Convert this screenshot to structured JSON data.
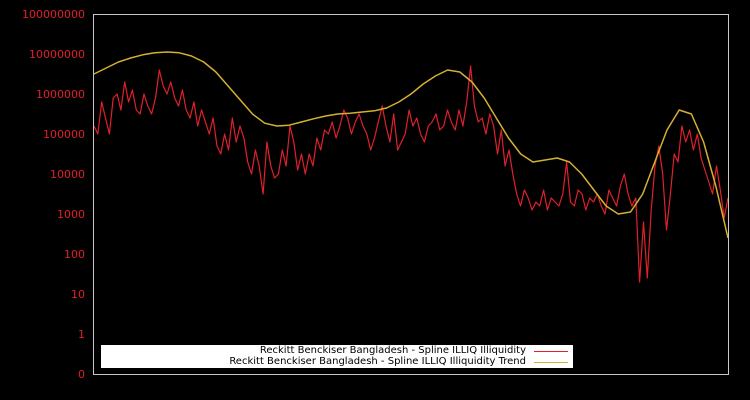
{
  "chart_data": {
    "type": "line",
    "title": "",
    "xlabel": "",
    "ylabel": "",
    "yscale": "log",
    "y_tick_labels": [
      "100000000",
      "10000000",
      "1000000",
      "100000",
      "10000",
      "1000",
      "100",
      "10",
      "1",
      "0"
    ],
    "ylim": [
      0,
      100000000
    ],
    "x_tick_labels": [],
    "grid": false,
    "legend_position": "bottom-left inside plot",
    "series": [
      {
        "name": "Reckitt Benckiser Bangladesh - Spline ILLIQ Illiquidity",
        "color": "#e0202c",
        "note": "log10 values sampled evenly across the x-axis (approximate)",
        "log10_values": [
          5.2,
          5.0,
          5.8,
          5.4,
          5.0,
          5.9,
          6.0,
          5.6,
          6.3,
          5.8,
          6.1,
          5.6,
          5.5,
          6.0,
          5.7,
          5.5,
          5.9,
          6.6,
          6.2,
          6.0,
          6.3,
          5.9,
          5.7,
          6.1,
          5.6,
          5.4,
          5.8,
          5.2,
          5.6,
          5.3,
          5.0,
          5.4,
          4.7,
          4.5,
          5.0,
          4.6,
          5.4,
          4.8,
          5.2,
          4.9,
          4.3,
          4.0,
          4.6,
          4.2,
          3.5,
          4.8,
          4.2,
          3.9,
          4.0,
          4.6,
          4.2,
          5.2,
          4.8,
          4.1,
          4.5,
          4.0,
          4.5,
          4.2,
          4.9,
          4.6,
          5.1,
          5.0,
          5.3,
          4.9,
          5.2,
          5.6,
          5.4,
          5.0,
          5.3,
          5.5,
          5.2,
          5.0,
          4.6,
          4.9,
          5.3,
          5.7,
          5.2,
          4.8,
          5.5,
          4.6,
          4.8,
          5.0,
          5.6,
          5.2,
          5.4,
          5.0,
          4.8,
          5.2,
          5.3,
          5.5,
          5.1,
          5.2,
          5.6,
          5.3,
          5.1,
          5.6,
          5.2,
          5.8,
          6.7,
          5.7,
          5.3,
          5.4,
          5.0,
          5.5,
          5.2,
          4.5,
          5.1,
          4.2,
          4.6,
          4.0,
          3.5,
          3.2,
          3.6,
          3.4,
          3.1,
          3.3,
          3.2,
          3.6,
          3.1,
          3.4,
          3.3,
          3.2,
          3.5,
          4.3,
          3.3,
          3.2,
          3.6,
          3.5,
          3.1,
          3.4,
          3.3,
          3.5,
          3.2,
          3.0,
          3.6,
          3.4,
          3.2,
          3.7,
          4.0,
          3.5,
          3.2,
          3.4,
          1.3,
          2.8,
          1.4,
          3.1,
          4.2,
          4.7,
          4.0,
          2.6,
          3.5,
          4.5,
          4.3,
          5.2,
          4.8,
          5.1,
          4.6,
          5.0,
          4.4,
          4.1,
          3.8,
          3.5,
          4.2,
          3.6,
          2.9,
          3.4
        ]
      },
      {
        "name": "Reckitt Benckiser Bangladesh - Spline ILLIQ Illiquidity Trend",
        "color": "#d4b030",
        "note": "log10 values sampled evenly across the x-axis (approximate)",
        "log10_values": [
          6.5,
          6.65,
          6.8,
          6.9,
          6.98,
          7.03,
          7.05,
          7.03,
          6.95,
          6.8,
          6.55,
          6.2,
          5.85,
          5.5,
          5.27,
          5.2,
          5.22,
          5.3,
          5.38,
          5.45,
          5.5,
          5.52,
          5.55,
          5.58,
          5.65,
          5.8,
          6.0,
          6.25,
          6.45,
          6.6,
          6.55,
          6.3,
          5.9,
          5.4,
          4.9,
          4.5,
          4.3,
          4.35,
          4.4,
          4.3,
          4.0,
          3.6,
          3.2,
          3.0,
          3.05,
          3.5,
          4.3,
          5.1,
          5.6,
          5.5,
          4.8,
          3.7,
          2.4
        ]
      }
    ]
  },
  "legend": {
    "items": [
      {
        "label": "Reckitt Benckiser Bangladesh - Spline ILLIQ Illiquidity",
        "color": "#e0202c"
      },
      {
        "label": "Reckitt Benckiser Bangladesh - Spline ILLIQ Illiquidity Trend",
        "color": "#d4b030"
      }
    ]
  },
  "axis": {
    "frame_color": "#c8c8c8",
    "tick_label_color": "#e0202c"
  }
}
